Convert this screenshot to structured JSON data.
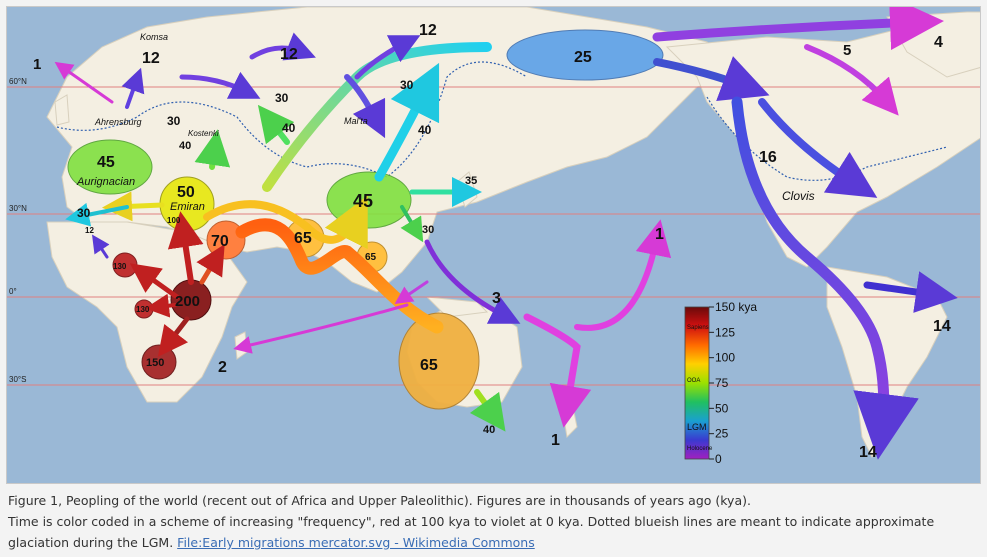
{
  "map": {
    "latitudes": [
      "60°N",
      "30°N",
      "0°",
      "30°S"
    ],
    "places": [
      "Komsa",
      "Ahrensburg",
      "Kostenki",
      "Mal'ta",
      "Clovis"
    ],
    "cultures": [
      "Aurignacian",
      "Emiran"
    ],
    "figures": {
      "komsa": "12",
      "scand": "1",
      "ahrens": "30",
      "kostenki": "40",
      "euro45": "45",
      "euro50": "50",
      "spain30": "30",
      "nafr12": "12",
      "hundred": "100",
      "mid70": "70",
      "india65": "65",
      "se65": "65",
      "asia45": "45",
      "west_sib": "12",
      "north12": "12",
      "r30a": "30",
      "r30b": "30",
      "r40a": "40",
      "r40b": "40",
      "japan35": "35",
      "china30": "30",
      "beringia25": "25",
      "alaska16": "16",
      "east5": "5",
      "greenland4": "4",
      "africa200": "200",
      "africa130a": "130",
      "africa130b": "130",
      "africa150": "150",
      "madagascar2": "2",
      "pacific1a": "1",
      "pacific3": "3",
      "nz1": "1",
      "aus65": "65",
      "aus40": "40",
      "sa14a": "14",
      "sa14b": "14"
    },
    "legend": {
      "ticks": [
        "150 kya",
        "125",
        "100",
        "75",
        "50",
        "25",
        "0"
      ],
      "bands": [
        "Sapiens",
        "OOA",
        "LGM",
        "Holocene"
      ],
      "gradient": [
        "#6a0a0a",
        "#d01010",
        "#ff6a00",
        "#ffd000",
        "#9be000",
        "#20c060",
        "#1aa0d0",
        "#3a3ad0",
        "#a020c0"
      ]
    }
  },
  "caption": {
    "line1": "Figure 1, Peopling of the world (recent out of Africa and Upper Paleolithic). Figures are in thousands of years ago (kya).",
    "line2": "Time is color coded in a scheme of increasing \"frequency\", red at 100 kya to violet at 0 kya. Dotted blueish lines are meant to indicate approximate",
    "line3": "glaciation during the LGM.",
    "link": "File:Early migrations mercator.svg - Wikimedia Commons"
  }
}
